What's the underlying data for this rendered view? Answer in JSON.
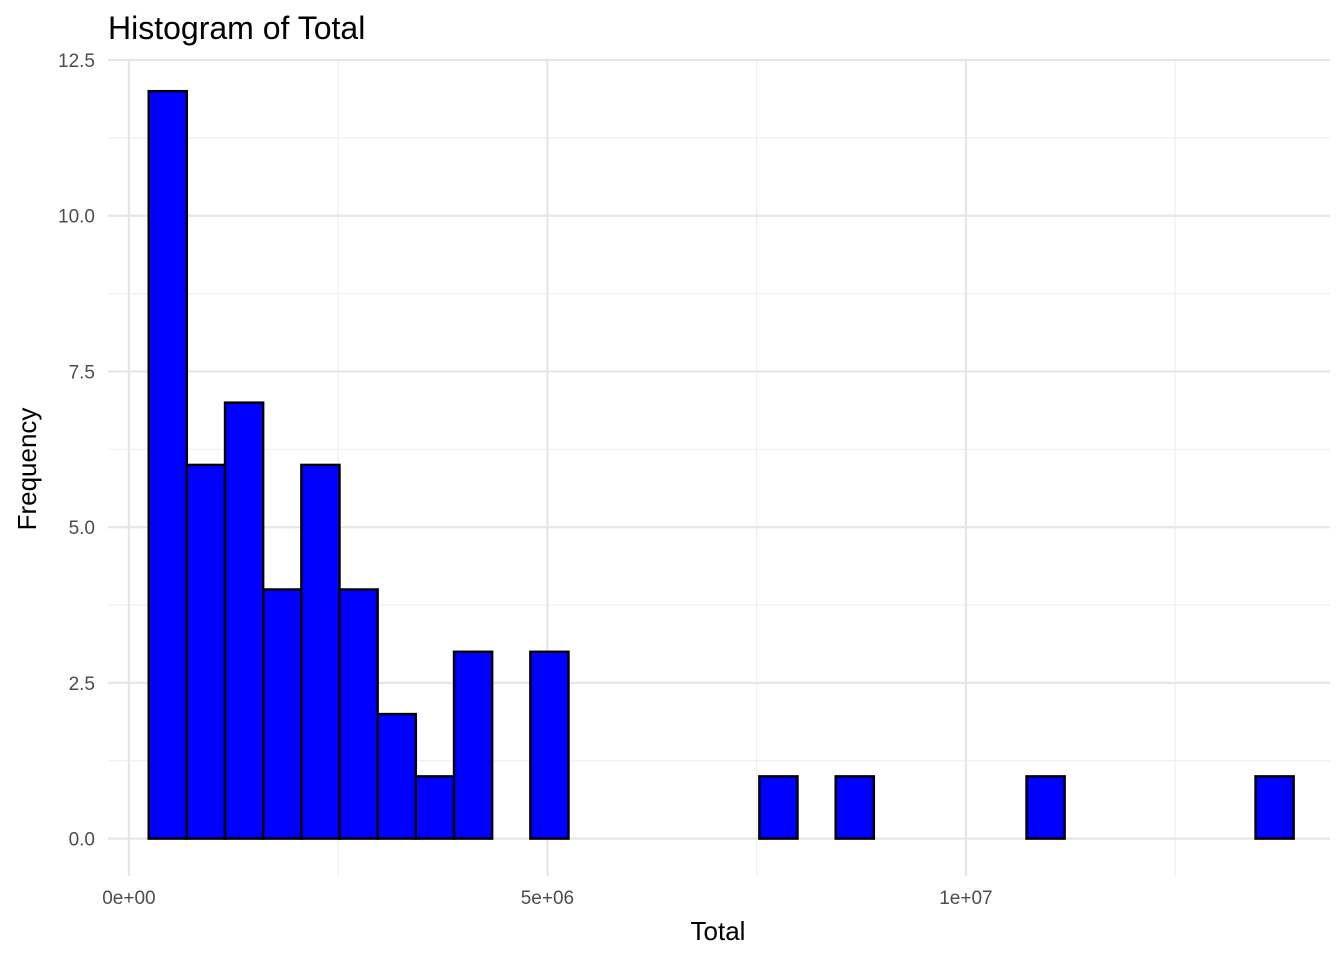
{
  "chart_data": {
    "type": "bar",
    "title": "Histogram of Total",
    "xlabel": "Total",
    "ylabel": "Frequency",
    "bar_color": "#0000ff",
    "outline_color": "#000000",
    "grid": true,
    "bin_width": 456000,
    "bins_start": 236000,
    "counts": [
      12,
      6,
      7,
      4,
      6,
      4,
      2,
      1,
      3,
      0,
      3,
      0,
      0,
      0,
      0,
      0,
      1,
      0,
      1,
      0,
      0,
      0,
      0,
      1,
      0,
      0,
      0,
      0,
      0,
      1
    ],
    "xlim": [
      -250000,
      14350000
    ],
    "ylim": [
      -0.6,
      12.5
    ],
    "x_ticks": [
      {
        "value": 0,
        "label": "0e+00"
      },
      {
        "value": 5000000,
        "label": "5e+06"
      },
      {
        "value": 10000000,
        "label": "1e+07"
      }
    ],
    "x_minor_ticks": [
      2500000,
      7500000,
      12500000
    ],
    "y_ticks": [
      {
        "value": 0,
        "label": "0.0"
      },
      {
        "value": 2.5,
        "label": "2.5"
      },
      {
        "value": 5,
        "label": "5.0"
      },
      {
        "value": 7.5,
        "label": "7.5"
      },
      {
        "value": 10,
        "label": "10.0"
      },
      {
        "value": 12.5,
        "label": "12.5"
      }
    ],
    "y_minor_ticks": [
      1.25,
      3.75,
      6.25,
      8.75,
      11.25
    ]
  }
}
